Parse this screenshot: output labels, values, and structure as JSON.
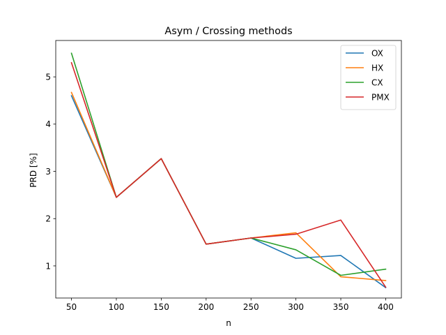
{
  "chart_data": {
    "type": "line",
    "title": "Asym / Crossing methods",
    "xlabel": "n",
    "ylabel": "PRD [%]",
    "x": [
      50,
      100,
      150,
      200,
      250,
      300,
      350,
      400
    ],
    "xticks": [
      "50",
      "100",
      "150",
      "200",
      "250",
      "300",
      "350",
      "400"
    ],
    "yticks": [
      "1",
      "2",
      "3",
      "4",
      "5"
    ],
    "xlim": [
      32.5,
      417.5
    ],
    "ylim": [
      0.32,
      5.77
    ],
    "grid": false,
    "legend_position": "top-right",
    "series": [
      {
        "name": "OX",
        "color": "#1f77b4",
        "values": [
          4.6,
          2.45,
          3.27,
          1.46,
          1.59,
          1.16,
          1.22,
          0.54
        ]
      },
      {
        "name": "HX",
        "color": "#ff7f0e",
        "values": [
          4.67,
          2.45,
          3.27,
          1.46,
          1.59,
          1.7,
          0.77,
          0.69
        ]
      },
      {
        "name": "CX",
        "color": "#2ca02c",
        "values": [
          5.5,
          2.45,
          3.27,
          1.46,
          1.59,
          1.34,
          0.8,
          0.93
        ]
      },
      {
        "name": "PMX",
        "color": "#d62728",
        "values": [
          5.3,
          2.45,
          3.27,
          1.46,
          1.59,
          1.67,
          1.97,
          0.55
        ]
      }
    ]
  }
}
